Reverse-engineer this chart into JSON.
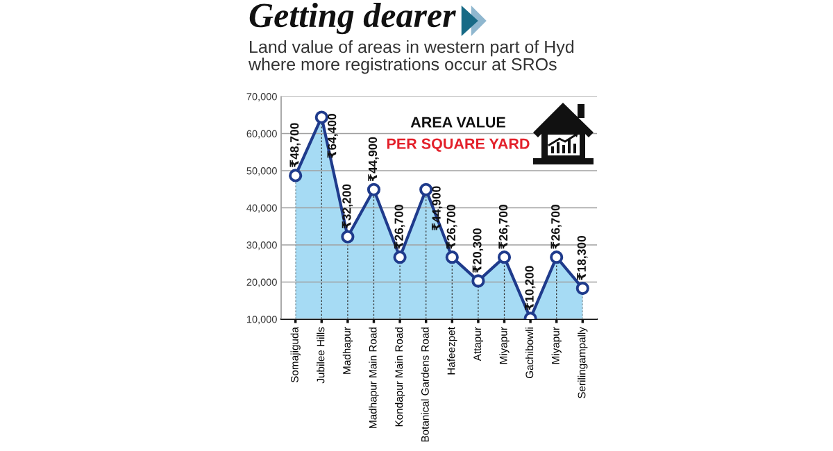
{
  "chart_data": {
    "type": "area",
    "title": "Getting dearer",
    "subtitle": "Land value of areas in western part of Hyd\nwhere more registrations occur at SROs",
    "categories": [
      "Somajiguda",
      "Jubilee Hills",
      "Madhapur",
      "Madhapur Main Road",
      "Kondapur Main Road",
      "Botanical Gardens Road",
      "Hafeezpet",
      "Attapur",
      "Miyapur",
      "Gachibowli",
      "Miyapur",
      "Serilingampally"
    ],
    "series": [
      {
        "color": "#a6dbf4",
        "values": [
          48700,
          64400,
          32200,
          44900,
          26700,
          44900,
          26700,
          20300,
          26700,
          10200,
          26700,
          18300
        ],
        "value_labels": [
          "₹48,700",
          "₹64,400",
          "₹32,200",
          "₹44,900",
          "₹26,700",
          "₹44,900",
          "₹26,700",
          "₹20,300",
          "₹26,700",
          "₹10,200",
          "₹26,700",
          "₹18,300"
        ]
      }
    ],
    "ylim": [
      10000,
      70000
    ],
    "yticks": [
      {
        "value": 10000,
        "label": "10,000"
      },
      {
        "value": 20000,
        "label": "20,000"
      },
      {
        "value": 30000,
        "label": "30,000"
      },
      {
        "value": 40000,
        "label": "40,000"
      },
      {
        "value": 50000,
        "label": "50,000"
      },
      {
        "value": 60000,
        "label": "60,000"
      },
      {
        "value": 70000,
        "label": "70,000"
      }
    ],
    "grid": true,
    "marker": "circle",
    "line_style": "solid",
    "annotations": [
      "AREA VALUE",
      "PER SQUARE YARD"
    ]
  }
}
